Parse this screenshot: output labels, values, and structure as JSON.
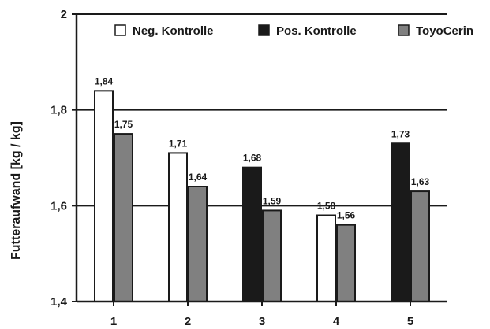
{
  "chart_data": {
    "type": "bar",
    "title": "",
    "xlabel": "",
    "ylabel": "Futteraufwand [kg / kg]",
    "ylim": [
      1.4,
      2.0
    ],
    "yticks": [
      {
        "value": 1.4,
        "label": "1,4"
      },
      {
        "value": 1.6,
        "label": "1,6"
      },
      {
        "value": 1.8,
        "label": "1,8"
      },
      {
        "value": 2.0,
        "label": "2"
      }
    ],
    "grid_lines": [
      1.6,
      1.8,
      2.0
    ],
    "legend_position": "top",
    "categories": [
      "1",
      "2",
      "3",
      "4",
      "5"
    ],
    "series": [
      {
        "name": "Neg. Kontrolle",
        "color": "#ffffff",
        "values": [
          1.84,
          1.71,
          null,
          1.58,
          null
        ],
        "labels": [
          "1,84",
          "1,71",
          "",
          "1,58",
          ""
        ]
      },
      {
        "name": "Pos. Kontrolle",
        "color": "#1a1a1a",
        "values": [
          null,
          null,
          1.68,
          null,
          1.73
        ],
        "labels": [
          "",
          "",
          "1,68",
          "",
          "1,73"
        ]
      },
      {
        "name": "ToyoCerin",
        "color": "#808080",
        "values": [
          1.75,
          1.64,
          1.59,
          1.56,
          1.63
        ],
        "labels": [
          "1,75",
          "1,64",
          "1,59",
          "1,56",
          "1,63"
        ]
      }
    ]
  }
}
